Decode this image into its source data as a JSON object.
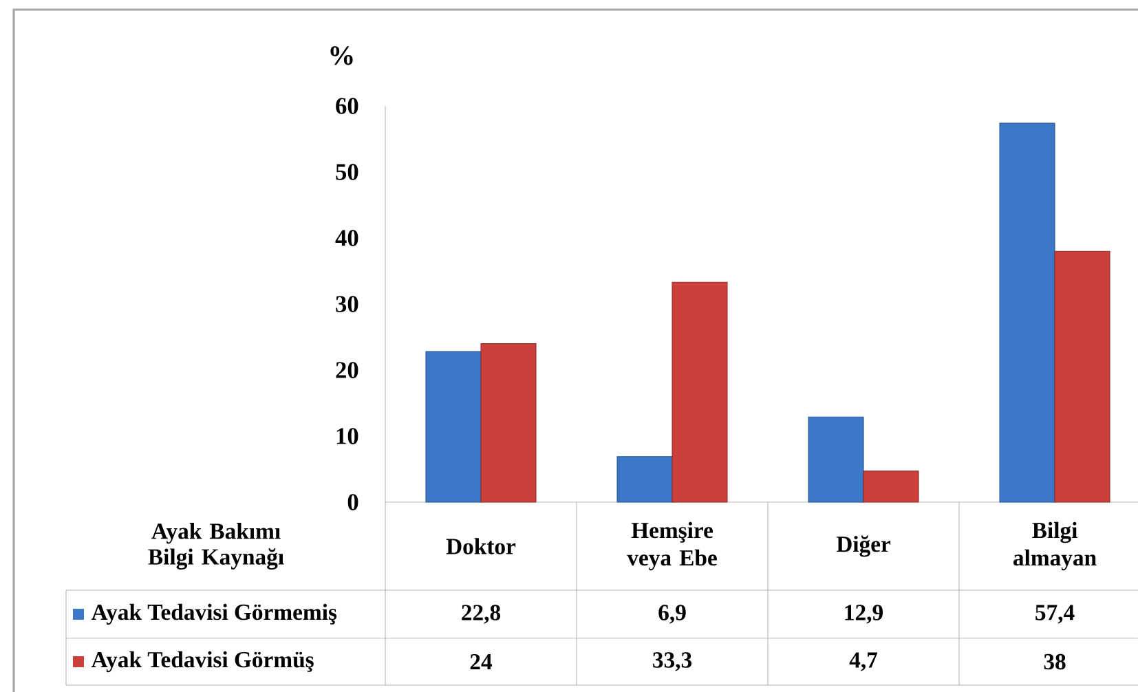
{
  "chart_data": {
    "type": "bar",
    "ylabel": "%",
    "xlabel": "Ayak Bakımı Bilgi Kaynağı",
    "categories": [
      "Doktor",
      "Hemşire veya Ebe",
      "Diğer",
      "Bilgi almayan"
    ],
    "series": [
      {
        "name": "Ayak Tedavisi Görmemiş",
        "color": "#3c78c8",
        "values": [
          22.8,
          6.9,
          12.9,
          57.4
        ],
        "value_labels": [
          "22,8",
          "6,9",
          "12,9",
          "57,4"
        ]
      },
      {
        "name": "Ayak Tedavisi Görmüş",
        "color": "#cc403c",
        "values": [
          24,
          33.3,
          4.7,
          38
        ],
        "value_labels": [
          "24",
          "33,3",
          "4,7",
          "38"
        ]
      }
    ],
    "ylim": [
      0,
      60
    ],
    "yticks": [
      0,
      10,
      20,
      30,
      40,
      50,
      60
    ],
    "legend": "bottom",
    "grid": false
  }
}
